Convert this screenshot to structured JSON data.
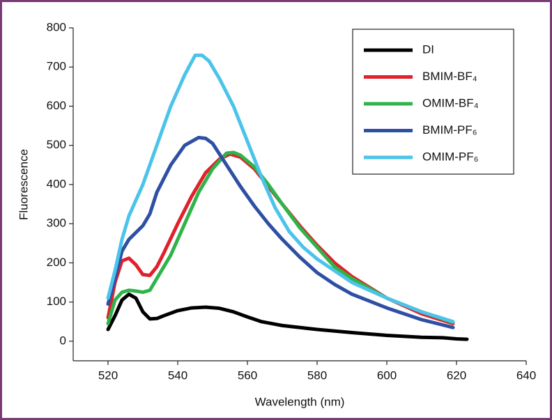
{
  "chart_data": {
    "type": "line",
    "xlabel": "Wavelength (nm)",
    "ylabel": "Fluorescence",
    "xlim": [
      510,
      640
    ],
    "xticks": [
      520,
      540,
      560,
      580,
      600,
      620,
      640
    ],
    "ylim": [
      -50,
      800
    ],
    "yticks": [
      0,
      100,
      200,
      300,
      400,
      500,
      600,
      700,
      800
    ],
    "legend": "upper right",
    "series": [
      {
        "name": "DI",
        "color": "#000000",
        "x": [
          520,
          522,
          524,
          526,
          528,
          530,
          532,
          534,
          536,
          540,
          544,
          548,
          552,
          556,
          560,
          564,
          570,
          580,
          590,
          600,
          610,
          616,
          620,
          623
        ],
        "values": [
          30,
          65,
          105,
          120,
          110,
          75,
          57,
          58,
          65,
          78,
          85,
          87,
          84,
          75,
          62,
          50,
          40,
          30,
          22,
          15,
          10,
          9,
          6,
          5
        ]
      },
      {
        "name": "BMIM-BF₄",
        "color": "#e0202a",
        "x": [
          520,
          522,
          524,
          526,
          528,
          530,
          532,
          534,
          536,
          540,
          544,
          548,
          552,
          555,
          558,
          562,
          566,
          570,
          575,
          580,
          585,
          590,
          600,
          610,
          619
        ],
        "values": [
          60,
          150,
          205,
          212,
          195,
          170,
          168,
          190,
          225,
          300,
          370,
          430,
          465,
          478,
          470,
          440,
          395,
          350,
          295,
          245,
          200,
          165,
          110,
          70,
          45
        ]
      },
      {
        "name": "OMIM-BF₄",
        "color": "#2fb34a",
        "x": [
          520,
          522,
          524,
          526,
          528,
          530,
          532,
          534,
          538,
          542,
          546,
          550,
          554,
          556,
          558,
          562,
          566,
          570,
          575,
          580,
          585,
          590,
          600,
          610,
          619
        ],
        "values": [
          45,
          105,
          125,
          130,
          128,
          125,
          130,
          160,
          220,
          300,
          380,
          440,
          480,
          482,
          475,
          445,
          400,
          350,
          290,
          240,
          190,
          160,
          110,
          75,
          48
        ]
      },
      {
        "name": "BMIM-PF₆",
        "color": "#2e4fa3",
        "x": [
          520,
          522,
          524,
          526,
          530,
          532,
          534,
          538,
          542,
          546,
          548,
          550,
          554,
          558,
          562,
          566,
          570,
          575,
          580,
          585,
          590,
          600,
          610,
          619
        ],
        "values": [
          95,
          160,
          230,
          260,
          295,
          325,
          380,
          450,
          500,
          520,
          518,
          505,
          450,
          395,
          345,
          300,
          260,
          215,
          175,
          145,
          120,
          85,
          55,
          35
        ]
      },
      {
        "name": "OMIM-PF₆",
        "color": "#4cc3ea",
        "x": [
          520,
          522,
          524,
          526,
          530,
          534,
          538,
          542,
          545,
          547,
          549,
          552,
          556,
          560,
          564,
          568,
          572,
          576,
          580,
          585,
          590,
          600,
          610,
          619
        ],
        "values": [
          110,
          180,
          260,
          320,
          400,
          500,
          600,
          680,
          730,
          730,
          715,
          670,
          600,
          510,
          420,
          340,
          280,
          240,
          210,
          180,
          150,
          110,
          75,
          50
        ]
      }
    ]
  }
}
